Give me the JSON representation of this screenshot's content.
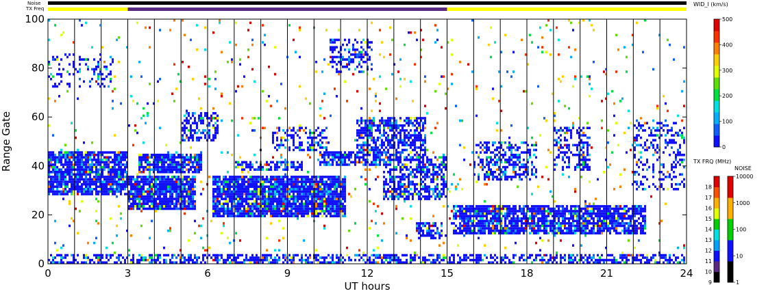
{
  "chart_data": {
    "type": "heatmap",
    "xlabel": "UT hours",
    "ylabel": "Range Gate",
    "xlim": [
      0,
      24
    ],
    "ylim": [
      0,
      100
    ],
    "x_ticks": [
      "0",
      "3",
      "6",
      "9",
      "12",
      "15",
      "18",
      "21",
      "24"
    ],
    "y_ticks": [
      "0",
      "20",
      "40",
      "60",
      "80",
      "100"
    ],
    "strip_labels": {
      "noise": "Noise",
      "txfreq": "TX Freq"
    },
    "tx_freq_segments": [
      {
        "start": 0,
        "end": 3,
        "color": "#ffff00"
      },
      {
        "start": 3,
        "end": 15,
        "color": "#5a2a82"
      },
      {
        "start": 15,
        "end": 24,
        "color": "#ffff00"
      }
    ],
    "scan_boundaries_ut": [
      1,
      2,
      3,
      4,
      5,
      6,
      7,
      8,
      9,
      10,
      11,
      12,
      13,
      14,
      15,
      16,
      17,
      18,
      19,
      20,
      21,
      22,
      23
    ],
    "echo_regions": [
      {
        "x0": 0,
        "x1": 3,
        "y0": 28,
        "y1": 46,
        "density": 0.85
      },
      {
        "x0": 3.0,
        "x1": 5.6,
        "y0": 22,
        "y1": 36,
        "density": 0.9
      },
      {
        "x0": 3.4,
        "x1": 5.8,
        "y0": 37,
        "y1": 45,
        "density": 0.85
      },
      {
        "x0": 5.0,
        "x1": 6.4,
        "y0": 50,
        "y1": 62,
        "density": 0.55
      },
      {
        "x0": 6.2,
        "x1": 11.2,
        "y0": 19,
        "y1": 36,
        "density": 0.9
      },
      {
        "x0": 7.0,
        "x1": 9.6,
        "y0": 38,
        "y1": 42,
        "density": 0.6
      },
      {
        "x0": 8.4,
        "x1": 10.6,
        "y0": 46,
        "y1": 56,
        "density": 0.4
      },
      {
        "x0": 10.2,
        "x1": 12.6,
        "y0": 40,
        "y1": 46,
        "density": 0.75
      },
      {
        "x0": 11.6,
        "x1": 14.2,
        "y0": 42,
        "y1": 60,
        "density": 0.65
      },
      {
        "x0": 12.6,
        "x1": 15.0,
        "y0": 26,
        "y1": 44,
        "density": 0.6
      },
      {
        "x0": 13.8,
        "x1": 14.8,
        "y0": 10,
        "y1": 17,
        "density": 0.7
      },
      {
        "x0": 10.6,
        "x1": 12.2,
        "y0": 78,
        "y1": 92,
        "density": 0.35
      },
      {
        "x0": 15.2,
        "x1": 22.5,
        "y0": 12,
        "y1": 24,
        "density": 0.8
      },
      {
        "x0": 16.0,
        "x1": 18.4,
        "y0": 34,
        "y1": 50,
        "density": 0.45
      },
      {
        "x0": 19.0,
        "x1": 20.4,
        "y0": 38,
        "y1": 56,
        "density": 0.45
      },
      {
        "x0": 22.0,
        "x1": 24.0,
        "y0": 30,
        "y1": 58,
        "density": 0.3
      },
      {
        "x0": 0,
        "x1": 24,
        "y0": 0,
        "y1": 4,
        "density": 0.55
      },
      {
        "x0": 0,
        "x1": 2.5,
        "y0": 72,
        "y1": 86,
        "density": 0.25
      }
    ],
    "colorbars": [
      {
        "title": "WID_l (km/s)",
        "ticks": [
          "0",
          "100",
          "200",
          "300",
          "400",
          "500"
        ],
        "colors": [
          "#1010ff",
          "#1060ff",
          "#00b0ff",
          "#00e0e0",
          "#00e040",
          "#60e000",
          "#e0ff00",
          "#ffd000",
          "#ff8000",
          "#ff3000",
          "#e00000"
        ]
      },
      {
        "title": "TX FRQ (MHz)",
        "ticks": [
          "9",
          "10",
          "11",
          "12",
          "13",
          "14",
          "15",
          "16",
          "17",
          "18"
        ],
        "colors": [
          "#000000",
          "#5a2a82",
          "#1010ff",
          "#00a0ff",
          "#00e0e0",
          "#00d000",
          "#e0ff00",
          "#ffb000",
          "#ff5000",
          "#e00000"
        ]
      },
      {
        "title": "NOISE",
        "ticks": [
          "1",
          "10",
          "100",
          "1000",
          "10000"
        ],
        "colors": [
          "#000000",
          "#1010ff",
          "#00d000",
          "#ffb000",
          "#e00000"
        ]
      }
    ]
  }
}
